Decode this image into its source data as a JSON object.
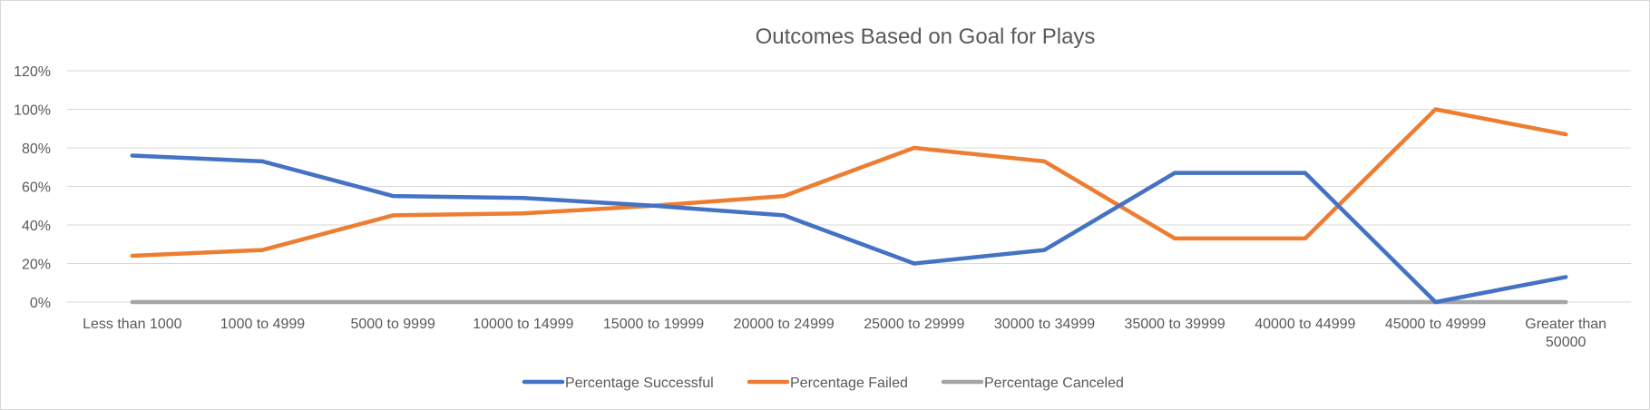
{
  "chart_data": {
    "type": "line",
    "title": "Outcomes Based on Goal for Plays",
    "categories": [
      "Less than 1000",
      "1000 to 4999",
      "5000 to 9999",
      "10000 to 14999",
      "15000 to 19999",
      "20000 to 24999",
      "25000 to 29999",
      "30000 to 34999",
      "35000 to 39999",
      "40000 to 44999",
      "45000 to 49999",
      "Greater than 50000"
    ],
    "category_lines": [
      [
        "Less than 1000"
      ],
      [
        "1000 to 4999"
      ],
      [
        "5000 to 9999"
      ],
      [
        "10000 to 14999"
      ],
      [
        "15000 to 19999"
      ],
      [
        "20000 to 24999"
      ],
      [
        "25000 to 29999"
      ],
      [
        "30000 to 34999"
      ],
      [
        "35000 to 39999"
      ],
      [
        "40000 to 44999"
      ],
      [
        "45000 to 49999"
      ],
      [
        "Greater than",
        "50000"
      ]
    ],
    "y_ticks": [
      "0%",
      "20%",
      "40%",
      "60%",
      "80%",
      "100%",
      "120%"
    ],
    "ylim": [
      0,
      120
    ],
    "grid": true,
    "legend_position": "bottom",
    "series": [
      {
        "name": "Percentage Successful",
        "color": "#4472c4",
        "values": [
          76,
          73,
          55,
          54,
          50,
          45,
          20,
          27,
          67,
          67,
          0,
          13
        ]
      },
      {
        "name": "Percentage Failed",
        "color": "#ed7d31",
        "values": [
          24,
          27,
          45,
          46,
          50,
          55,
          80,
          73,
          33,
          33,
          100,
          87
        ]
      },
      {
        "name": "Percentage Canceled",
        "color": "#a5a5a5",
        "values": [
          0,
          0,
          0,
          0,
          0,
          0,
          0,
          0,
          0,
          0,
          0,
          0
        ]
      }
    ]
  }
}
